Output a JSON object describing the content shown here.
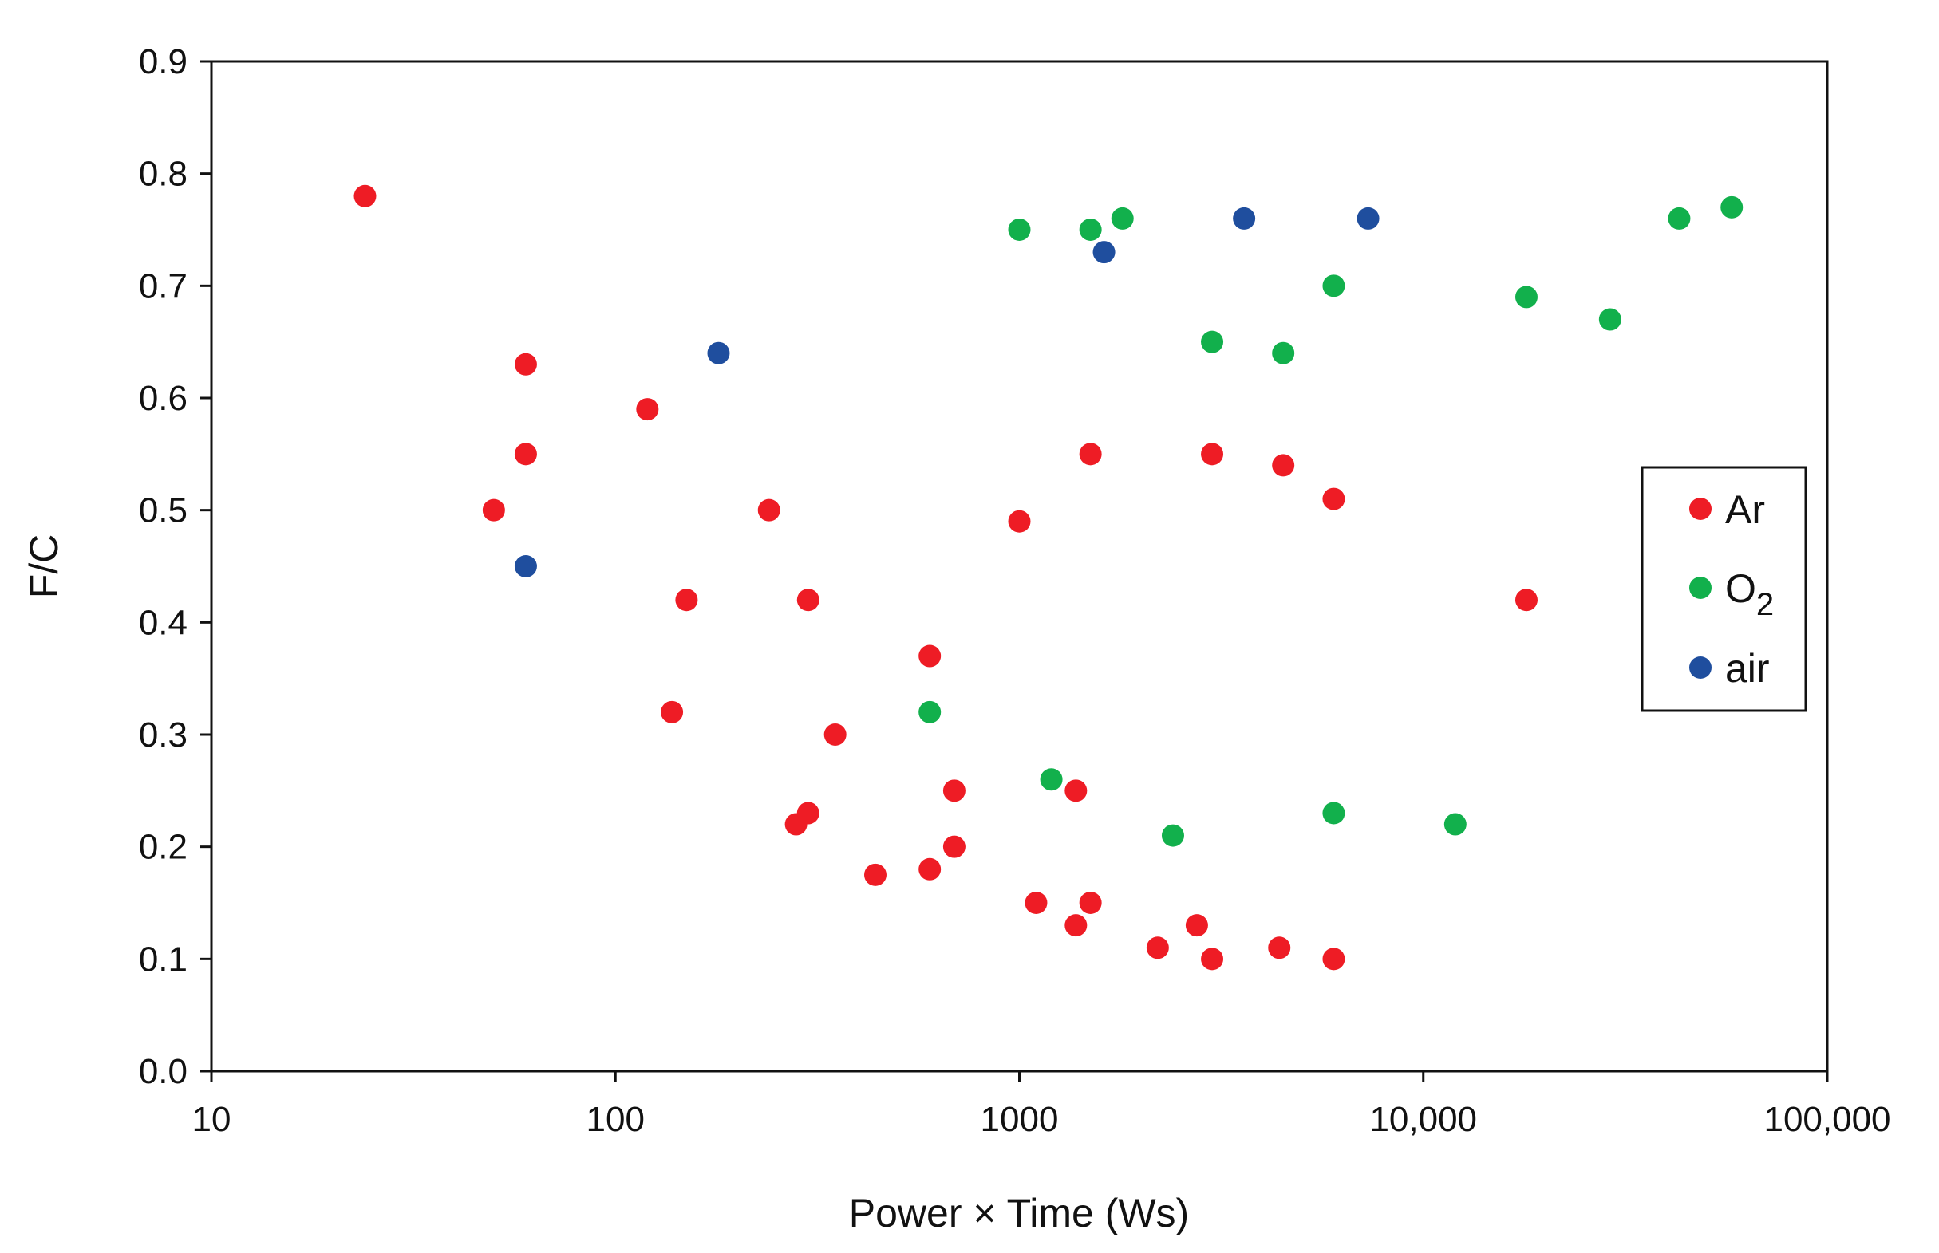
{
  "chart_data": {
    "type": "scatter",
    "title": "",
    "xlabel": "Power × Time (Ws)",
    "ylabel": "F/C",
    "x_scale": "log",
    "xlim": [
      10,
      100000
    ],
    "ylim": [
      0,
      0.9
    ],
    "x_ticks": [
      10,
      100,
      1000,
      10000,
      100000
    ],
    "x_tick_labels": [
      "10",
      "100",
      "1000",
      "10,000",
      "100,000"
    ],
    "y_ticks": [
      0,
      0.1,
      0.2,
      0.3,
      0.4,
      0.5,
      0.6,
      0.7,
      0.8,
      0.9
    ],
    "y_tick_labels": [
      "0.0",
      "0.1",
      "0.2",
      "0.3",
      "0.4",
      "0.5",
      "0.6",
      "0.7",
      "0.8",
      "0.9"
    ],
    "grid": false,
    "legend_position": "right",
    "series": [
      {
        "name": "Ar",
        "color": "#ee1c25",
        "points": [
          [
            24,
            0.78
          ],
          [
            60,
            0.63
          ],
          [
            60,
            0.55
          ],
          [
            50,
            0.5
          ],
          [
            120,
            0.59
          ],
          [
            240,
            0.5
          ],
          [
            150,
            0.42
          ],
          [
            300,
            0.42
          ],
          [
            138,
            0.32
          ],
          [
            600,
            0.37
          ],
          [
            350,
            0.3
          ],
          [
            280,
            0.22
          ],
          [
            300,
            0.23
          ],
          [
            690,
            0.25
          ],
          [
            690,
            0.2
          ],
          [
            440,
            0.175
          ],
          [
            600,
            0.18
          ],
          [
            1000,
            0.49
          ],
          [
            1500,
            0.55
          ],
          [
            3000,
            0.55
          ],
          [
            4500,
            0.54
          ],
          [
            6000,
            0.51
          ],
          [
            18000,
            0.42
          ],
          [
            1100,
            0.15
          ],
          [
            1380,
            0.25
          ],
          [
            1380,
            0.13
          ],
          [
            1500,
            0.15
          ],
          [
            2200,
            0.11
          ],
          [
            2750,
            0.13
          ],
          [
            3000,
            0.1
          ],
          [
            4400,
            0.11
          ],
          [
            6000,
            0.1
          ]
        ]
      },
      {
        "name": "O",
        "name_sub": "2",
        "color": "#12b04c",
        "points": [
          [
            1000,
            0.75
          ],
          [
            1500,
            0.75
          ],
          [
            1800,
            0.76
          ],
          [
            3000,
            0.65
          ],
          [
            4500,
            0.64
          ],
          [
            6000,
            0.7
          ],
          [
            600,
            0.32
          ],
          [
            1200,
            0.26
          ],
          [
            2400,
            0.21
          ],
          [
            6000,
            0.23
          ],
          [
            12000,
            0.22
          ],
          [
            18000,
            0.69
          ],
          [
            29000,
            0.67
          ],
          [
            43000,
            0.76
          ],
          [
            58000,
            0.77
          ]
        ]
      },
      {
        "name": "air",
        "color": "#1f4e9e",
        "points": [
          [
            60,
            0.45
          ],
          [
            180,
            0.64
          ],
          [
            1620,
            0.73
          ],
          [
            3600,
            0.76
          ],
          [
            7300,
            0.76
          ]
        ]
      }
    ]
  }
}
